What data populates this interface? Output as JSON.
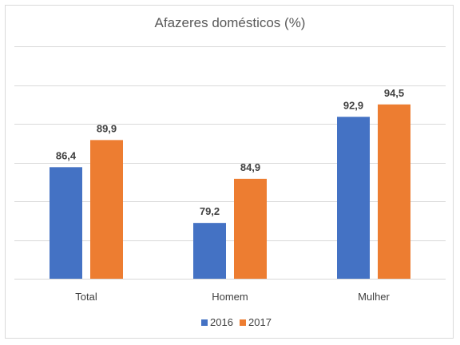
{
  "chart_data": {
    "type": "bar",
    "title": "Afazeres domésticos (%)",
    "categories": [
      "Total",
      "Homem",
      "Mulher"
    ],
    "series": [
      {
        "name": "2016",
        "color": "#4472C4",
        "values": [
          86.4,
          79.2,
          92.9
        ],
        "labels": [
          "86,4",
          "79,2",
          "92,9"
        ]
      },
      {
        "name": "2017",
        "color": "#ED7D31",
        "values": [
          89.9,
          84.9,
          94.5
        ],
        "labels": [
          "89,9",
          "84,9",
          "94,5"
        ]
      }
    ],
    "ylim": [
      72,
      102
    ],
    "grid": true,
    "gridline_step": 5,
    "axis_tick_labels_shown": false,
    "legend_position": "bottom"
  }
}
